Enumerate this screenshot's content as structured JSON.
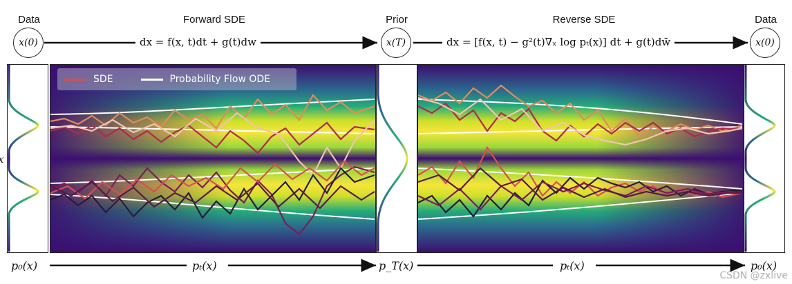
{
  "top": {
    "data_left_label": "Data",
    "forward_label": "Forward SDE",
    "prior_label": "Prior",
    "reverse_label": "Reverse SDE",
    "data_right_label": "Data"
  },
  "nodes": {
    "x0_left": "x(0)",
    "xT": "x(T)",
    "x0_right": "x(0)"
  },
  "equations": {
    "forward": "dx = f(x, t)dt + g(t)dw",
    "reverse": "dx = [f(x, t) − g²(t)∇ₓ log pₜ(x)] dt + g(t)dw̄"
  },
  "legend": {
    "sde": "SDE",
    "ode": "Probability Flow ODE"
  },
  "side_axis_label": "x",
  "bottom": {
    "p0": "p₀(x)",
    "pt_left": "pₜ(x)",
    "pT": "p_T(x)",
    "pt_right": "pₜ(x)",
    "p0_right": "p₀(x)"
  },
  "watermark": "CSDN @zxlive",
  "colors": {
    "sde_line": "#d94f4f",
    "ode_line": "#ffffff",
    "yellow": "#f6e53b",
    "purple": "#3b0f70"
  }
}
